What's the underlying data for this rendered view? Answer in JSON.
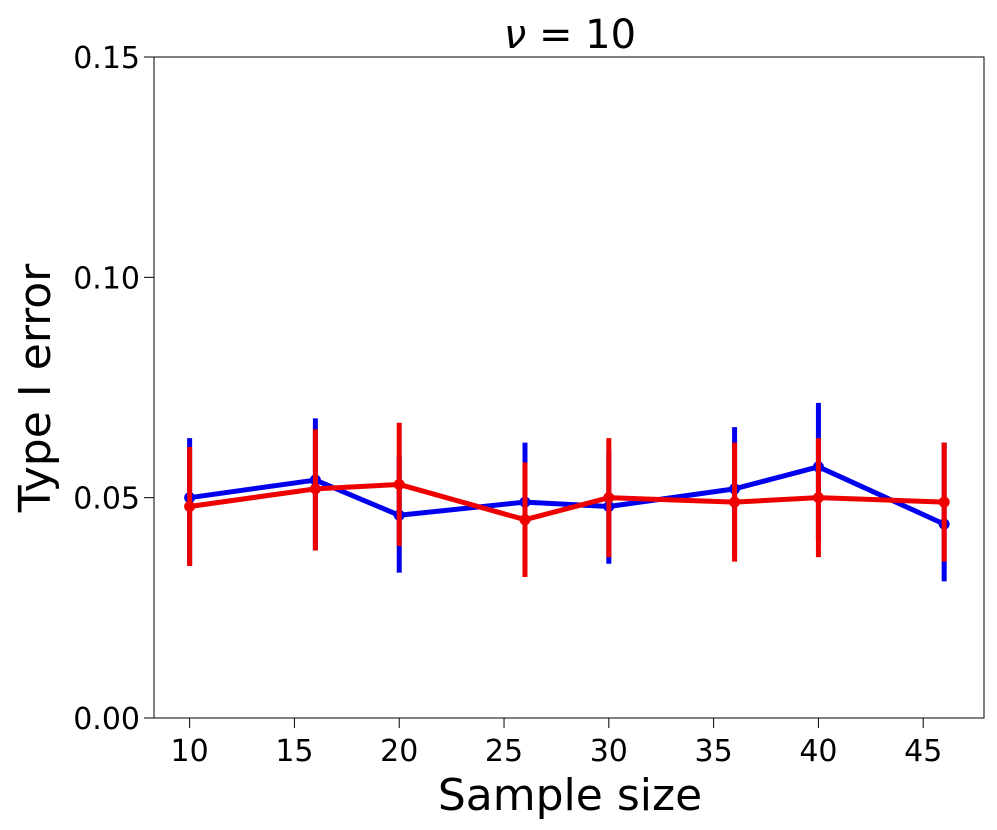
{
  "chart_data": {
    "type": "line",
    "title_symbol": "ν",
    "title_eq": "= 10",
    "xlabel": "Sample size",
    "ylabel": "Type I error",
    "xlim": [
      8.3,
      47.9
    ],
    "ylim": [
      0.0,
      0.15
    ],
    "xticks": [
      10,
      15,
      20,
      25,
      30,
      35,
      40,
      45
    ],
    "yticks": [
      0.0,
      0.05,
      0.1,
      0.15
    ],
    "ytick_labels": [
      "0.00",
      "0.05",
      "0.10",
      "0.15"
    ],
    "grid": false,
    "x": [
      10,
      16,
      20,
      26,
      30,
      36,
      40,
      46
    ],
    "series": [
      {
        "name": "blue series",
        "color": "#0000ee",
        "values": [
          0.05,
          0.054,
          0.046,
          0.049,
          0.048,
          0.052,
          0.057,
          0.044
        ],
        "err_low": [
          0.0345,
          0.038,
          0.033,
          0.0335,
          0.035,
          0.0365,
          0.0405,
          0.031
        ],
        "err_high": [
          0.0635,
          0.068,
          0.0595,
          0.0625,
          0.0605,
          0.066,
          0.0715,
          0.0625
        ]
      },
      {
        "name": "red series",
        "color": "#ee0000",
        "values": [
          0.048,
          0.052,
          0.053,
          0.045,
          0.05,
          0.049,
          0.05,
          0.049
        ],
        "err_low": [
          0.0345,
          0.038,
          0.039,
          0.032,
          0.0365,
          0.0355,
          0.0365,
          0.0355
        ],
        "err_high": [
          0.0615,
          0.0655,
          0.067,
          0.058,
          0.0635,
          0.0625,
          0.0635,
          0.0625
        ]
      }
    ]
  }
}
